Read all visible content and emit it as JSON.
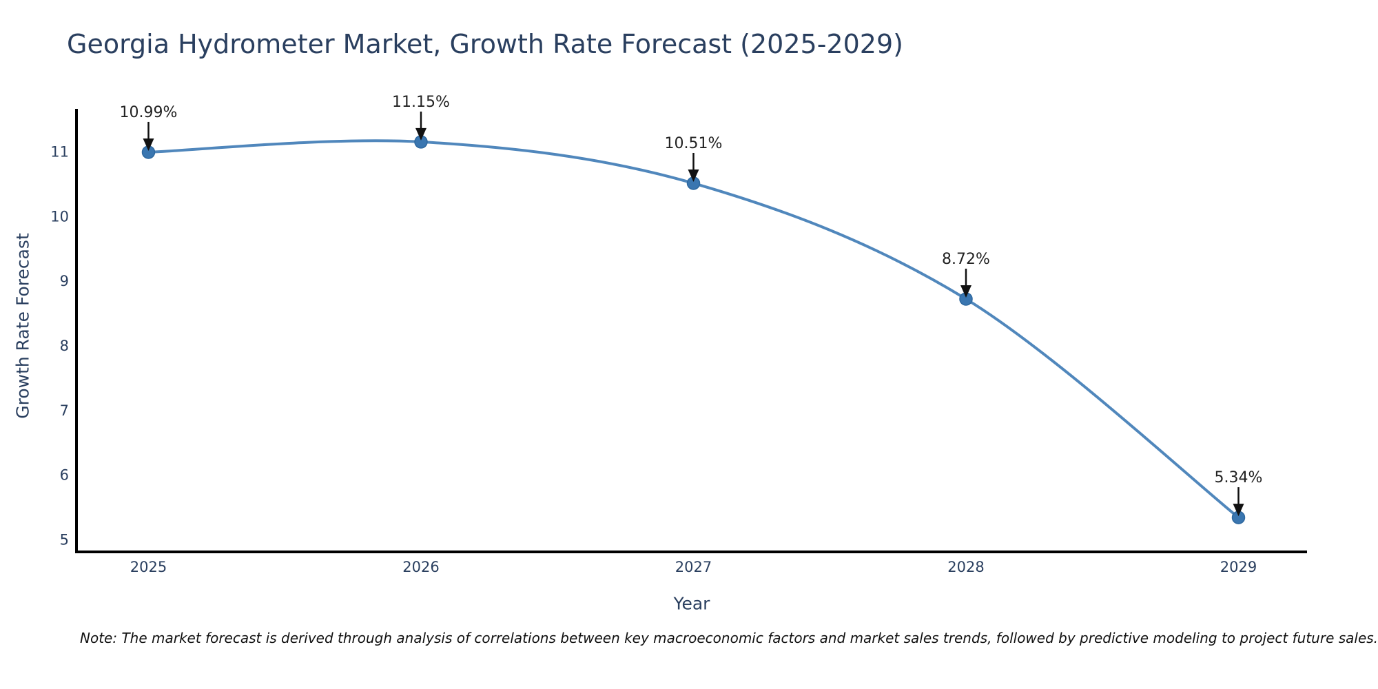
{
  "note": "Note: The market forecast is derived through analysis of correlations between key macroeconomic factors and market sales trends, followed by predictive modeling to project future sales.",
  "chart_data": {
    "type": "line",
    "title": "Georgia Hydrometer Market, Growth Rate Forecast (2025-2029)",
    "xlabel": "Year",
    "ylabel": "Growth Rate Forecast",
    "x": [
      "2025",
      "2026",
      "2027",
      "2028",
      "2029"
    ],
    "values": [
      10.99,
      11.15,
      10.51,
      8.72,
      5.34
    ],
    "point_labels": [
      "10.99%",
      "11.15%",
      "10.51%",
      "8.72%",
      "5.34%"
    ],
    "yticks": [
      5,
      6,
      7,
      8,
      9,
      10,
      11
    ],
    "ylim": [
      4.81,
      11.64
    ],
    "xlim_padding_years": [
      0.26,
      0.25
    ],
    "grid": false,
    "legend": "none",
    "line_shape": "spline",
    "marker": "circle",
    "annotation_arrows": true,
    "colors": {
      "line": "#3d7ab5",
      "marker_fill": "#3a76b0",
      "marker_edge": "#2e689f",
      "axis_line": "#000000",
      "axis_text": "#2a3f5f",
      "annotation_text": "#222222",
      "arrow": "#111111",
      "background": "#ffffff",
      "note_text": "#111111"
    }
  }
}
